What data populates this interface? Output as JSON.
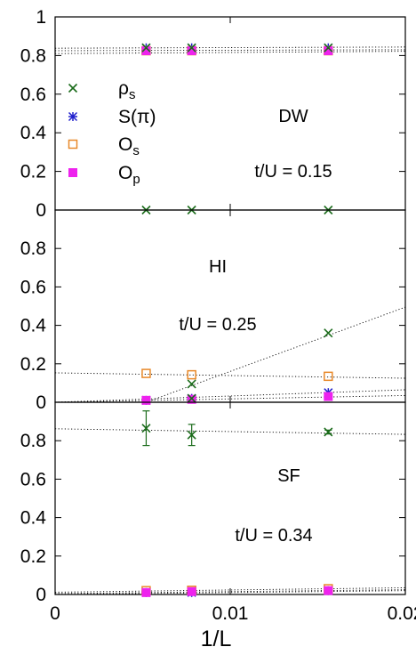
{
  "chart_data": {
    "type": "scatter",
    "xlabel": "1/L",
    "x_ticks": [
      0,
      0.01,
      0.02
    ],
    "x_tick_labels": [
      "0",
      "0.01",
      "0.02"
    ],
    "xlim": [
      0,
      0.02
    ],
    "legend": [
      {
        "key": "rho_s",
        "main": "ρ",
        "sub": "s",
        "marker": "x",
        "color": "#1a6b1a"
      },
      {
        "key": "S_pi",
        "main": "S(π)",
        "sub": "",
        "marker": "star",
        "color": "#1f1fcc"
      },
      {
        "key": "O_s",
        "main": "O",
        "sub": "s",
        "marker": "open-square",
        "color": "#e8892a"
      },
      {
        "key": "O_p",
        "main": "O",
        "sub": "p",
        "marker": "filled-square",
        "color": "#ee22ee"
      }
    ],
    "panels": [
      {
        "id": "dw",
        "phase_label": "DW",
        "param_label": "t/U = 0.15",
        "ylim": [
          0,
          1
        ],
        "y_ticks": [
          0,
          0.2,
          0.4,
          0.6,
          0.8,
          1
        ],
        "y_tick_labels": [
          "0",
          "0.2",
          "0.4",
          "0.6",
          "0.8",
          "1"
        ],
        "fits": [
          {
            "series": "S_pi",
            "points": [
              [
                0,
                0.838
              ],
              [
                0.02,
                0.844
              ]
            ]
          },
          {
            "series": "O_p",
            "points": [
              [
                0,
                0.825
              ],
              [
                0.02,
                0.83
              ]
            ]
          },
          {
            "series": "O_s",
            "points": [
              [
                0,
                0.81
              ],
              [
                0.02,
                0.822
              ]
            ]
          }
        ],
        "points": [
          {
            "series": "rho_s",
            "x": 0.0052,
            "y": 0.0
          },
          {
            "series": "rho_s",
            "x": 0.0078,
            "y": 0.0
          },
          {
            "series": "rho_s",
            "x": 0.0156,
            "y": 0.0
          },
          {
            "series": "S_pi",
            "x": 0.0052,
            "y": 0.84
          },
          {
            "series": "S_pi",
            "x": 0.0078,
            "y": 0.84
          },
          {
            "series": "S_pi",
            "x": 0.0156,
            "y": 0.84
          },
          {
            "series": "O_s",
            "x": 0.0052,
            "y": 0.825
          },
          {
            "series": "O_s",
            "x": 0.0078,
            "y": 0.825
          },
          {
            "series": "O_s",
            "x": 0.0156,
            "y": 0.825
          },
          {
            "series": "O_p",
            "x": 0.0052,
            "y": 0.825
          },
          {
            "series": "O_p",
            "x": 0.0078,
            "y": 0.825
          },
          {
            "series": "O_p",
            "x": 0.0156,
            "y": 0.825
          },
          {
            "series": "rho_s",
            "x": 0.0052,
            "y": 0.84
          },
          {
            "series": "rho_s",
            "x": 0.0078,
            "y": 0.84
          },
          {
            "series": "rho_s",
            "x": 0.0156,
            "y": 0.84
          }
        ]
      },
      {
        "id": "hi",
        "phase_label": "HI",
        "param_label": "t/U = 0.25",
        "ylim": [
          0,
          1
        ],
        "y_ticks": [
          0,
          0.2,
          0.4,
          0.6,
          0.8
        ],
        "y_tick_labels": [
          "0",
          "0.2",
          "0.4",
          "0.6",
          "0.8"
        ],
        "fits": [
          {
            "series": "rho_s",
            "points": [
              [
                0.0052,
                0.0
              ],
              [
                0.02,
                0.495
              ]
            ]
          },
          {
            "series": "O_s",
            "points": [
              [
                0,
                0.153
              ],
              [
                0.02,
                0.125
              ]
            ]
          },
          {
            "series": "S_pi",
            "points": [
              [
                0,
                0.0
              ],
              [
                0.02,
                0.065
              ]
            ]
          },
          {
            "series": "O_p",
            "points": [
              [
                0,
                0.0
              ],
              [
                0.02,
                0.035
              ]
            ]
          }
        ],
        "points": [
          {
            "series": "rho_s",
            "x": 0.0052,
            "y": 0.01
          },
          {
            "series": "rho_s",
            "x": 0.0078,
            "y": 0.095
          },
          {
            "series": "rho_s",
            "x": 0.0156,
            "y": 0.36
          },
          {
            "series": "S_pi",
            "x": 0.0052,
            "y": 0.01
          },
          {
            "series": "S_pi",
            "x": 0.0078,
            "y": 0.02
          },
          {
            "series": "S_pi",
            "x": 0.0156,
            "y": 0.05
          },
          {
            "series": "O_s",
            "x": 0.0052,
            "y": 0.15
          },
          {
            "series": "O_s",
            "x": 0.0078,
            "y": 0.143
          },
          {
            "series": "O_s",
            "x": 0.0156,
            "y": 0.135
          },
          {
            "series": "O_p",
            "x": 0.0052,
            "y": 0.01
          },
          {
            "series": "O_p",
            "x": 0.0078,
            "y": 0.015
          },
          {
            "series": "O_p",
            "x": 0.0156,
            "y": 0.03
          },
          {
            "series": "rho_s",
            "x": 0.0078,
            "y": 0.02
          }
        ]
      },
      {
        "id": "sf",
        "phase_label": "SF",
        "param_label": "t/U = 0.34",
        "ylim": [
          0,
          1
        ],
        "y_ticks": [
          0,
          0.2,
          0.4,
          0.6,
          0.8
        ],
        "y_tick_labels": [
          "0",
          "0.2",
          "0.4",
          "0.6",
          "0.8"
        ],
        "fits": [
          {
            "series": "rho_s",
            "points": [
              [
                0,
                0.862
              ],
              [
                0.02,
                0.833
              ]
            ]
          },
          {
            "series": "O_s",
            "points": [
              [
                0,
                0.012
              ],
              [
                0.02,
                0.035
              ]
            ]
          },
          {
            "series": "O_p",
            "points": [
              [
                0,
                0.005
              ],
              [
                0.02,
                0.025
              ]
            ]
          },
          {
            "series": "S_pi",
            "points": [
              [
                0,
                0.0
              ],
              [
                0.02,
                0.02
              ]
            ]
          }
        ],
        "points": [
          {
            "series": "rho_s",
            "x": 0.0052,
            "y": 0.865,
            "err": 0.09
          },
          {
            "series": "rho_s",
            "x": 0.0078,
            "y": 0.83,
            "err": 0.055
          },
          {
            "series": "rho_s",
            "x": 0.0156,
            "y": 0.845,
            "err": 0.01
          },
          {
            "series": "S_pi",
            "x": 0.0052,
            "y": 0.01
          },
          {
            "series": "S_pi",
            "x": 0.0078,
            "y": 0.01
          },
          {
            "series": "S_pi",
            "x": 0.0156,
            "y": 0.02
          },
          {
            "series": "O_s",
            "x": 0.0052,
            "y": 0.02
          },
          {
            "series": "O_s",
            "x": 0.0078,
            "y": 0.022
          },
          {
            "series": "O_s",
            "x": 0.0156,
            "y": 0.03
          },
          {
            "series": "O_p",
            "x": 0.0052,
            "y": 0.01
          },
          {
            "series": "O_p",
            "x": 0.0078,
            "y": 0.015
          },
          {
            "series": "O_p",
            "x": 0.0156,
            "y": 0.02
          }
        ]
      }
    ]
  }
}
